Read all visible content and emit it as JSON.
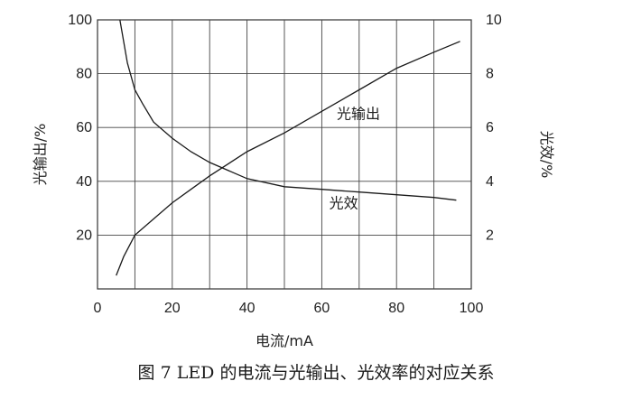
{
  "caption": "图 7    LED 的电流与光输出、光效率的对应关系",
  "chart_data": {
    "type": "line",
    "xlabel": "电流/mA",
    "ylabel_left": "光输出/%",
    "ylabel_right": "光效/%",
    "xlim": [
      0,
      100
    ],
    "ylim_left": [
      0,
      100
    ],
    "ylim_right": [
      0,
      10
    ],
    "x_ticks": [
      "0",
      "20",
      "40",
      "60",
      "80",
      "100"
    ],
    "y_ticks_left": [
      "20",
      "40",
      "60",
      "80",
      "100"
    ],
    "y_ticks_right": [
      "2",
      "4",
      "6",
      "8",
      "10"
    ],
    "grid": true,
    "series": [
      {
        "name": "光输出",
        "axis": "left",
        "x": [
          5,
          7,
          10,
          15,
          20,
          25,
          30,
          40,
          50,
          60,
          70,
          80,
          90,
          97
        ],
        "y": [
          5,
          12,
          20,
          26,
          32,
          37,
          42,
          51,
          58,
          66,
          74,
          82,
          88,
          92
        ]
      },
      {
        "name": "光效",
        "axis": "right",
        "x": [
          6,
          8,
          10,
          12,
          15,
          20,
          25,
          30,
          40,
          50,
          60,
          70,
          80,
          90,
          96
        ],
        "y": [
          10,
          8.4,
          7.4,
          6.9,
          6.2,
          5.6,
          5.1,
          4.7,
          4.1,
          3.8,
          3.7,
          3.6,
          3.5,
          3.4,
          3.3
        ]
      }
    ]
  }
}
